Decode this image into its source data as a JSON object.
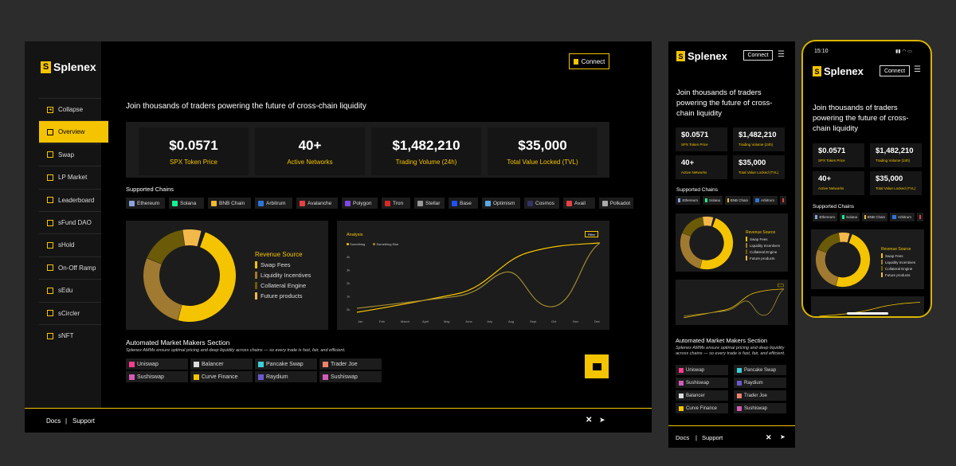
{
  "brand": {
    "name": "Splenex",
    "accent": "#f5c400"
  },
  "desktop": {
    "connect_label": "Connect",
    "sidebar": [
      {
        "label": "Collapse",
        "icon": "chevron-left-icon"
      },
      {
        "label": "Overview",
        "icon": "overview-icon",
        "active": true
      },
      {
        "label": "Swap",
        "icon": "swap-icon"
      },
      {
        "label": "LP Market",
        "icon": "lp-market-icon"
      },
      {
        "label": "Leaderboard",
        "icon": "leaderboard-icon"
      },
      {
        "label": "sFund DAO",
        "icon": "dao-icon"
      },
      {
        "label": "sHold",
        "icon": "hold-icon"
      },
      {
        "label": "On-Off Ramp",
        "icon": "ramp-icon"
      },
      {
        "label": "sEdu",
        "icon": "edu-icon"
      },
      {
        "label": "sCircler",
        "icon": "circler-icon"
      },
      {
        "label": "sNFT",
        "icon": "nft-icon"
      }
    ],
    "headline": "Join thousands of traders powering the future of cross-chain liquidity",
    "stats": [
      {
        "value": "$0.0571",
        "label": "SPX Token Price"
      },
      {
        "value": "40+",
        "label": "Active Networks"
      },
      {
        "value": "$1,482,210",
        "label": "Trading Volume (24h)"
      },
      {
        "value": "$35,000",
        "label": "Total Value Locked (TVL)"
      }
    ],
    "chains_title": "Supported Chains",
    "chains": [
      {
        "name": "Ethereum",
        "color": "#8aa4d8"
      },
      {
        "name": "Solana",
        "color": "#14f195"
      },
      {
        "name": "BNB Chain",
        "color": "#f3ba2f"
      },
      {
        "name": "Arbitrum",
        "color": "#2d74da"
      },
      {
        "name": "Avalanche",
        "color": "#e84142"
      },
      {
        "name": "Polygon",
        "color": "#8247e5"
      },
      {
        "name": "Tron",
        "color": "#d62828"
      },
      {
        "name": "Stellar",
        "color": "#999999"
      },
      {
        "name": "Base",
        "color": "#2151f5"
      },
      {
        "name": "Optimism",
        "color": "#5aa9e6"
      },
      {
        "name": "Cosmos",
        "color": "#333366"
      },
      {
        "name": "Avail",
        "color": "#e84142"
      },
      {
        "name": "Polkadot",
        "color": "#aaaaaa"
      }
    ],
    "revenue": {
      "title": "Revenue Source",
      "items": [
        {
          "label": "Swap Fees",
          "color": "#f5c400"
        },
        {
          "label": "Liquidity Incentives",
          "color": "#a07a30"
        },
        {
          "label": "Collateral Engine",
          "color": "#6b5a08"
        },
        {
          "label": "Future products",
          "color": "#f2b84a"
        }
      ],
      "values": [
        45,
        25,
        15,
        6
      ]
    },
    "analysis": {
      "title": "Analysis",
      "filter_label": "Filter",
      "series": [
        "Something",
        "Something Else"
      ],
      "y_ticks": [
        "4k",
        "3k",
        "2k",
        "1k",
        "0k"
      ],
      "x_ticks": [
        "Jan",
        "Feb",
        "March",
        "April",
        "May",
        "June",
        "July",
        "Aug",
        "Sept",
        "Oct",
        "Nov",
        "Dec"
      ]
    },
    "amm": {
      "title": "Automated Market Makers Section",
      "subtitle": "Splenex AMMs ensure optimal pricing and deep liquidity across chains — so every trade is fast, fair, and efficient.",
      "items": [
        {
          "name": "Uniswap",
          "color": "#ff3c8e"
        },
        {
          "name": "Balancer",
          "color": "#dddddd"
        },
        {
          "name": "Pancake Swap",
          "color": "#3ccfd4"
        },
        {
          "name": "Trader Joe",
          "color": "#f0826c"
        },
        {
          "name": "Sushiswap",
          "color": "#d45bb6"
        },
        {
          "name": "Curve Finance",
          "color": "#f5c400"
        },
        {
          "name": "Raydium",
          "color": "#6a5acd"
        },
        {
          "name": "Sushiswap",
          "color": "#d45bb6"
        }
      ]
    },
    "footer": {
      "docs": "Docs",
      "sep": "|",
      "support": "Support"
    }
  },
  "tablet": {
    "connect_label": "Connect",
    "headline": "Join thousands of traders powering the future of cross-chain liquidity",
    "stats": [
      {
        "value": "$0.0571",
        "label": "SPX Token Price"
      },
      {
        "value": "$1,482,210",
        "label": "Trading Volume (24h)"
      },
      {
        "value": "40+",
        "label": "Active Networks"
      },
      {
        "value": "$35,000",
        "label": "Total Value Locked (TVL)"
      }
    ],
    "chains_title": "Supported Chains",
    "chains": [
      "Ethereum",
      "Solana",
      "BNB Chain",
      "Arbitrum"
    ],
    "revenue_title": "Revenue Source",
    "revenue_items": [
      "Swap Fees",
      "Liquidity Incentives",
      "Collateral Engine",
      "Future products"
    ],
    "amm_title": "Automated Market Makers Section",
    "amm_subtitle": "Splenex AMMs ensure optimal pricing and deep liquidity across chains — so every trade is fast, fair, and efficient.",
    "amm_items": [
      "Uniswap",
      "Pancake Swap",
      "Sushiswap",
      "Raydium",
      "Balancer",
      "Trader Joe",
      "Curve Finance",
      "Sushiswap"
    ],
    "footer": {
      "docs": "Docs",
      "sep": "|",
      "support": "Support"
    }
  },
  "phone": {
    "time": "15:10",
    "connect_label": "Connect",
    "headline": "Join thousands of traders powering the future of cross-chain liquidity",
    "stats": [
      {
        "value": "$0.0571",
        "label": "SPX Token Price"
      },
      {
        "value": "$1,482,210",
        "label": "Trading Volume (24h)"
      },
      {
        "value": "40+",
        "label": "Active Networks"
      },
      {
        "value": "$35,000",
        "label": "Total Value Locked (TVL)"
      }
    ],
    "chains_title": "Supported Chains",
    "chains": [
      "Ethereum",
      "Solana",
      "BNB Chain",
      "Arbitrum"
    ],
    "revenue_title": "Revenue Source",
    "revenue_items": [
      "Swap Fees",
      "Liquidity Incentives",
      "Collateral Engine",
      "Future products"
    ]
  }
}
